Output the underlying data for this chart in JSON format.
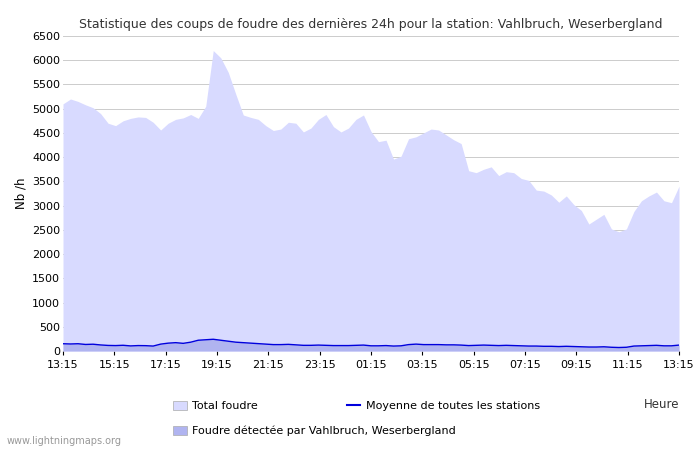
{
  "title": "Statistique des coups de foudre des dernières 24h pour la station: Vahlbruch, Weserbergland",
  "ylabel": "Nb /h",
  "xlabel_right": "Heure",
  "watermark": "www.lightningmaps.org",
  "ylim": [
    0,
    6500
  ],
  "yticks": [
    0,
    500,
    1000,
    1500,
    2000,
    2500,
    3000,
    3500,
    4000,
    4500,
    5000,
    5500,
    6000,
    6500
  ],
  "xtick_labels": [
    "13:15",
    "15:15",
    "17:15",
    "19:15",
    "21:15",
    "23:15",
    "01:15",
    "03:15",
    "05:15",
    "07:15",
    "09:15",
    "11:15",
    "13:15"
  ],
  "fill_color_light": "#d8daff",
  "fill_color_dark": "#b0b4f0",
  "line_color": "#0000dd",
  "background_color": "#ffffff",
  "grid_color": "#cccccc",
  "legend_labels": [
    "Total foudre",
    "Moyenne de toutes les stations",
    "Foudre détectée par Vahlbruch, Weserbergland"
  ],
  "total_foudre": [
    5100,
    5200,
    5150,
    5080,
    5020,
    4900,
    4700,
    4650,
    4750,
    4800,
    4830,
    4820,
    4720,
    4560,
    4700,
    4780,
    4810,
    4880,
    4800,
    5050,
    6200,
    6050,
    5750,
    5300,
    4870,
    4820,
    4780,
    4650,
    4550,
    4580,
    4720,
    4700,
    4520,
    4600,
    4780,
    4880,
    4630,
    4520,
    4600,
    4780,
    4870,
    4530,
    4320,
    4350,
    3960,
    4020,
    4380,
    4420,
    4500,
    4580,
    4560,
    4460,
    4360,
    4280,
    3720,
    3680,
    3750,
    3800,
    3620,
    3700,
    3680,
    3560,
    3520,
    3320,
    3300,
    3220,
    3070,
    3200,
    3020,
    2900,
    2620,
    2720,
    2820,
    2520,
    2460,
    2520,
    2880,
    3100,
    3200,
    3280,
    3100,
    3060,
    3400
  ],
  "local_foudre": [
    150,
    145,
    150,
    135,
    140,
    125,
    115,
    112,
    118,
    105,
    112,
    110,
    102,
    142,
    162,
    172,
    158,
    182,
    222,
    232,
    242,
    222,
    202,
    182,
    172,
    162,
    152,
    142,
    132,
    132,
    137,
    127,
    117,
    117,
    122,
    117,
    112,
    112,
    112,
    117,
    122,
    107,
    107,
    112,
    102,
    107,
    132,
    142,
    132,
    132,
    132,
    127,
    127,
    122,
    112,
    117,
    122,
    117,
    112,
    117,
    112,
    107,
    102,
    102,
    97,
    97,
    92,
    97,
    92,
    87,
    82,
    82,
    87,
    77,
    72,
    77,
    102,
    107,
    112,
    117,
    107,
    107,
    122
  ]
}
